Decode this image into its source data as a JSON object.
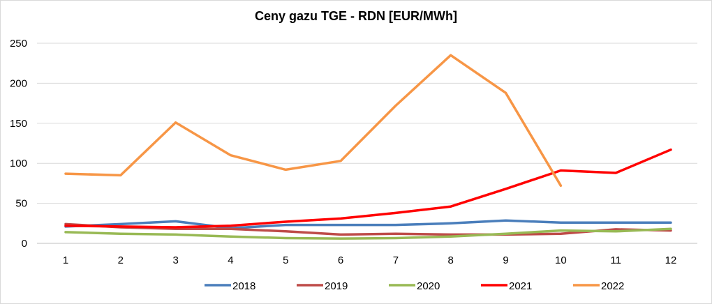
{
  "chart_data": {
    "type": "line",
    "title": "Ceny gazu TGE - RDN [EUR/MWh]",
    "xlabel": "",
    "ylabel": "",
    "categories": [
      "1",
      "2",
      "3",
      "4",
      "5",
      "6",
      "7",
      "8",
      "9",
      "10",
      "11",
      "12"
    ],
    "ylim": [
      0,
      250
    ],
    "yticks": [
      "0",
      "50",
      "100",
      "150",
      "200",
      "250"
    ],
    "grid": "horizontal",
    "legend": "bottom",
    "series": [
      {
        "name": "2018",
        "color": "#4a7ebb",
        "values": [
          21,
          24,
          27.5,
          19,
          23,
          23,
          23,
          25,
          28.5,
          26,
          26,
          26
        ]
      },
      {
        "name": "2019",
        "color": "#be4b48",
        "values": [
          24,
          20,
          18,
          18,
          15,
          11,
          12,
          11,
          11,
          12,
          17.5,
          16
        ]
      },
      {
        "name": "2020",
        "color": "#98b954",
        "values": [
          14,
          12,
          11,
          8.5,
          6.5,
          6,
          6.5,
          8.5,
          12,
          16,
          15,
          18
        ]
      },
      {
        "name": "2021",
        "color": "#ff0000",
        "values": [
          22,
          21,
          20,
          22,
          27,
          31,
          38,
          46,
          68,
          91,
          88,
          117
        ]
      },
      {
        "name": "2022",
        "color": "#f79646",
        "values": [
          87,
          85,
          151,
          110,
          92,
          103,
          172,
          235,
          188,
          72,
          null,
          null
        ]
      }
    ]
  }
}
